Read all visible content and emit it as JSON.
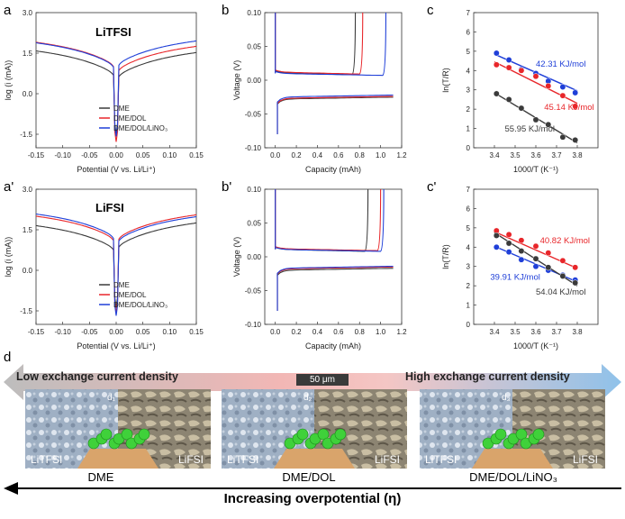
{
  "panels": {
    "a": {
      "letter": "a",
      "title": "LiTFSI"
    },
    "b": {
      "letter": "b"
    },
    "c": {
      "letter": "c"
    },
    "a2": {
      "letter": "a'",
      "title": "LiFSI"
    },
    "b2": {
      "letter": "b'"
    },
    "c2": {
      "letter": "c'"
    },
    "d": {
      "letter": "d"
    }
  },
  "colors": {
    "DME": "#3a3a3a",
    "DME/DOL": "#e8262a",
    "DME/DOL/LiNO3": "#1f3fd8"
  },
  "chart_data": [
    {
      "id": "a",
      "type": "line",
      "title": "LiTFSI",
      "xlabel": "Potential (V vs. Li/Li⁺)",
      "ylabel": "log (i (mA))",
      "xlim": [
        -0.15,
        0.15
      ],
      "ylim": [
        -2,
        3
      ],
      "xticks": [
        -0.15,
        -0.1,
        -0.05,
        0,
        0.05,
        0.1,
        0.15
      ],
      "xtick_labels": [
        "-0.15",
        "-0.10",
        "-0.05",
        "0.00",
        "0.05",
        "0.10",
        "0.15"
      ],
      "yticks": [
        -1.5,
        0,
        1.5,
        3
      ],
      "ytick_labels": [
        "-1.5",
        "0.0",
        "1.5",
        "3.0"
      ],
      "legend": {
        "position": "bottom-center",
        "entries": [
          "DME",
          "DME/DOL",
          "DME/DOL/LiNO₃"
        ]
      },
      "series": [
        {
          "name": "DME",
          "color": "#3a3a3a",
          "left": 1.58,
          "right": 1.52,
          "min": -1.6
        },
        {
          "name": "DME/DOL",
          "color": "#e8262a",
          "left": 1.9,
          "right": 1.75,
          "min": -1.9
        },
        {
          "name": "DME/DOL/LiNO3",
          "color": "#1f3fd8",
          "left": 1.88,
          "right": 1.95,
          "min": -1.7
        }
      ]
    },
    {
      "id": "b",
      "type": "line",
      "xlabel": "Capacity (mAh)",
      "ylabel": "Voltage (V)",
      "xlim": [
        -0.1,
        1.2
      ],
      "ylim": [
        -0.1,
        0.1
      ],
      "xticks": [
        0,
        0.2,
        0.4,
        0.6,
        0.8,
        1.0,
        1.2
      ],
      "xtick_labels": [
        "0.0",
        "0.2",
        "0.4",
        "0.6",
        "0.8",
        "1.0",
        "1.2"
      ],
      "yticks": [
        -0.1,
        -0.05,
        0,
        0.05,
        0.1
      ],
      "ytick_labels": [
        "-0.10",
        "-0.05",
        "0.00",
        "0.05",
        "0.10"
      ],
      "series": [
        {
          "name": "DME",
          "color": "#3a3a3a",
          "end": 0.76,
          "charge": 0.011,
          "discharge": -0.028
        },
        {
          "name": "DME/DOL",
          "color": "#e8262a",
          "end": 0.83,
          "charge": 0.012,
          "discharge": -0.027
        },
        {
          "name": "DME/DOL/LiNO3",
          "color": "#1f3fd8",
          "end": 1.05,
          "charge": 0.01,
          "discharge": -0.025
        }
      ]
    },
    {
      "id": "c",
      "type": "scatter",
      "xlabel": "1000/T (K⁻¹)",
      "ylabel": "ln(T/R)",
      "xlim": [
        3.3,
        3.9
      ],
      "ylim": [
        0,
        7
      ],
      "xticks": [
        3.4,
        3.5,
        3.6,
        3.7,
        3.8
      ],
      "xtick_labels": [
        "3.4",
        "3.5",
        "3.6",
        "3.7",
        "3.8"
      ],
      "yticks": [
        0,
        1,
        2,
        3,
        4,
        5,
        6,
        7
      ],
      "ytick_labels": [
        "0",
        "1",
        "2",
        "3",
        "4",
        "5",
        "6",
        "7"
      ],
      "x": [
        3.41,
        3.47,
        3.53,
        3.6,
        3.66,
        3.73,
        3.79
      ],
      "series": [
        {
          "name": "42.31 KJ/mol",
          "color": "#1f3fd8",
          "y": [
            4.9,
            4.55,
            4.05,
            3.85,
            3.45,
            3.15,
            2.85
          ],
          "fit": [
            4.85,
            2.95
          ]
        },
        {
          "name": "45.14 KJ/mol",
          "color": "#e8262a",
          "y": [
            4.3,
            4.15,
            4.0,
            3.7,
            3.2,
            2.7,
            2.15
          ],
          "fit": [
            4.45,
            2.3
          ]
        },
        {
          "name": "55.95 KJ/mol",
          "color": "#3a3a3a",
          "y": [
            2.8,
            2.5,
            2.05,
            1.45,
            1.2,
            0.55,
            0.4
          ],
          "fit": [
            2.85,
            0.25
          ]
        }
      ],
      "annotations": [
        {
          "text": "42.31 KJ/mol",
          "color": "#1f3fd8",
          "x": 3.6,
          "y": 4.2
        },
        {
          "text": "45.14 KJ/mol",
          "color": "#e8262a",
          "x": 3.64,
          "y": 1.95
        },
        {
          "text": "55.95 KJ/mol",
          "color": "#3a3a3a",
          "x": 3.45,
          "y": 0.85
        }
      ]
    },
    {
      "id": "a2",
      "type": "line",
      "title": "LiFSI",
      "xlabel": "Potential (V vs. Li/Li⁺)",
      "ylabel": "log (i (mA))",
      "xlim": [
        -0.15,
        0.15
      ],
      "ylim": [
        -2,
        3
      ],
      "xticks": [
        -0.15,
        -0.1,
        -0.05,
        0,
        0.05,
        0.1,
        0.15
      ],
      "xtick_labels": [
        "-0.15",
        "-0.10",
        "-0.05",
        "0.00",
        "0.05",
        "0.10",
        "0.15"
      ],
      "yticks": [
        -1.5,
        0,
        1.5,
        3
      ],
      "ytick_labels": [
        "-1.5",
        "0.0",
        "1.5",
        "3.0"
      ],
      "legend": {
        "position": "bottom-center",
        "entries": [
          "DME",
          "DME/DOL",
          "DME/DOL/LiNO₃"
        ]
      },
      "series": [
        {
          "name": "DME",
          "color": "#3a3a3a",
          "left": 1.65,
          "right": 1.75,
          "min": -1.5
        },
        {
          "name": "DME/DOL",
          "color": "#e8262a",
          "left": 2.0,
          "right": 2.05,
          "min": -1.7
        },
        {
          "name": "DME/DOL/LiNO3",
          "color": "#1f3fd8",
          "left": 2.08,
          "right": 1.98,
          "min": -1.8
        }
      ]
    },
    {
      "id": "b2",
      "type": "line",
      "xlabel": "Capacity (mAh)",
      "ylabel": "Voltage (V)",
      "xlim": [
        -0.1,
        1.2
      ],
      "ylim": [
        -0.1,
        0.1
      ],
      "xticks": [
        0,
        0.2,
        0.4,
        0.6,
        0.8,
        1.0,
        1.2
      ],
      "xtick_labels": [
        "0.0",
        "0.2",
        "0.4",
        "0.6",
        "0.8",
        "1.0",
        "1.2"
      ],
      "yticks": [
        -0.1,
        -0.05,
        0,
        0.05,
        0.1
      ],
      "ytick_labels": [
        "-0.10",
        "-0.05",
        "0.00",
        "0.05",
        "0.10"
      ],
      "series": [
        {
          "name": "DME",
          "color": "#3a3a3a",
          "end": 0.88,
          "charge": 0.011,
          "discharge": -0.02
        },
        {
          "name": "DME/DOL",
          "color": "#e8262a",
          "end": 1.0,
          "charge": 0.012,
          "discharge": -0.018
        },
        {
          "name": "DME/DOL/LiNO3",
          "color": "#1f3fd8",
          "end": 1.03,
          "charge": 0.011,
          "discharge": -0.017
        }
      ]
    },
    {
      "id": "c2",
      "type": "scatter",
      "xlabel": "1000/T (K⁻¹)",
      "ylabel": "ln(T/R)",
      "xlim": [
        3.3,
        3.9
      ],
      "ylim": [
        0,
        7
      ],
      "xticks": [
        3.4,
        3.5,
        3.6,
        3.7,
        3.8
      ],
      "xtick_labels": [
        "3.4",
        "3.5",
        "3.6",
        "3.7",
        "3.8"
      ],
      "yticks": [
        0,
        1,
        2,
        3,
        4,
        5,
        6,
        7
      ],
      "ytick_labels": [
        "0",
        "1",
        "2",
        "3",
        "4",
        "5",
        "6",
        "7"
      ],
      "x": [
        3.41,
        3.47,
        3.53,
        3.6,
        3.66,
        3.73,
        3.79
      ],
      "series": [
        {
          "name": "40.82 KJ/mol",
          "color": "#e8262a",
          "y": [
            4.85,
            4.65,
            4.35,
            4.05,
            3.7,
            3.3,
            2.95
          ],
          "fit": [
            4.8,
            2.9
          ]
        },
        {
          "name": "39.91 KJ/mol",
          "color": "#1f3fd8",
          "y": [
            4.0,
            3.75,
            3.35,
            3.0,
            2.8,
            2.55,
            2.3
          ],
          "fit": [
            4.05,
            2.2
          ]
        },
        {
          "name": "54.04 KJ/mol",
          "color": "#3a3a3a",
          "y": [
            4.6,
            4.2,
            3.8,
            3.4,
            2.95,
            2.5,
            2.15
          ],
          "fit": [
            4.75,
            2.0
          ]
        }
      ],
      "annotations": [
        {
          "text": "40.82 KJ/mol",
          "color": "#e8262a",
          "x": 3.62,
          "y": 4.2
        },
        {
          "text": "39.91 KJ/mol",
          "color": "#1f3fd8",
          "x": 3.38,
          "y": 2.3
        },
        {
          "text": "54.04 KJ/mol",
          "color": "#3a3a3a",
          "x": 3.6,
          "y": 1.55
        }
      ]
    }
  ],
  "panel_d": {
    "low_label": "Low exchange current density",
    "high_label": "High exchange current density",
    "scale_bar": "50 μm",
    "images": [
      {
        "left": "LiTFSI",
        "right": "LiFSI",
        "caption": "DME",
        "mark": "d₁"
      },
      {
        "left": "LiTFSI",
        "right": "LiFSI",
        "caption": "DME/DOL",
        "mark": "d₂"
      },
      {
        "left": "LiTFSI",
        "right": "LiFSI",
        "caption": "DME/DOL/LiNO₃",
        "mark": "d₃"
      }
    ],
    "overpotential": "Increasing overpotential (η)"
  }
}
